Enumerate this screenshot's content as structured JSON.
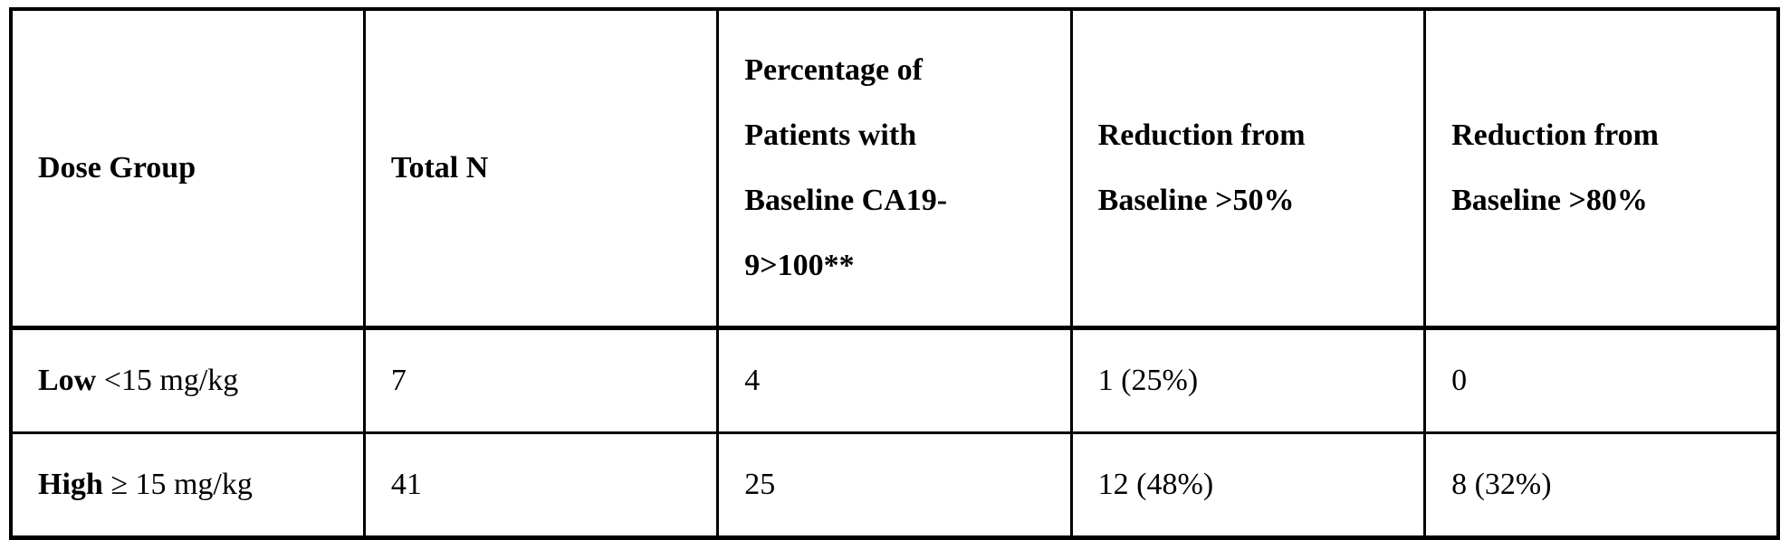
{
  "table": {
    "headers": [
      "Dose Group",
      "Total N",
      "Percentage of\nPatients with\nBaseline CA19-\n9>100**",
      "Reduction from\nBaseline >50%",
      "Reduction from\nBaseline >80%"
    ],
    "rows": [
      {
        "dose_bold": "Low",
        "dose_rest": " <15 mg/kg",
        "total_n": "7",
        "pct_baseline_ca19": "4",
        "reduction_50": "1 (25%)",
        "reduction_80": "0"
      },
      {
        "dose_bold": "High",
        "dose_rest": " ≥ 15 mg/kg",
        "total_n": "41",
        "pct_baseline_ca19": "25",
        "reduction_50": "12 (48%)",
        "reduction_80": "8 (32%)"
      }
    ]
  },
  "chart_data": {
    "type": "table",
    "columns": [
      "Dose Group",
      "Total N",
      "Percentage of Patients with Baseline CA19-9>100**",
      "Reduction from Baseline >50%",
      "Reduction from Baseline >80%"
    ],
    "rows": [
      [
        "Low <15 mg/kg",
        7,
        4,
        "1 (25%)",
        0
      ],
      [
        "High ≥ 15 mg/kg",
        41,
        25,
        "12 (48%)",
        "8 (32%)"
      ]
    ]
  },
  "colors": {
    "text": "#000000",
    "border": "#000000",
    "background": "#ffffff"
  }
}
